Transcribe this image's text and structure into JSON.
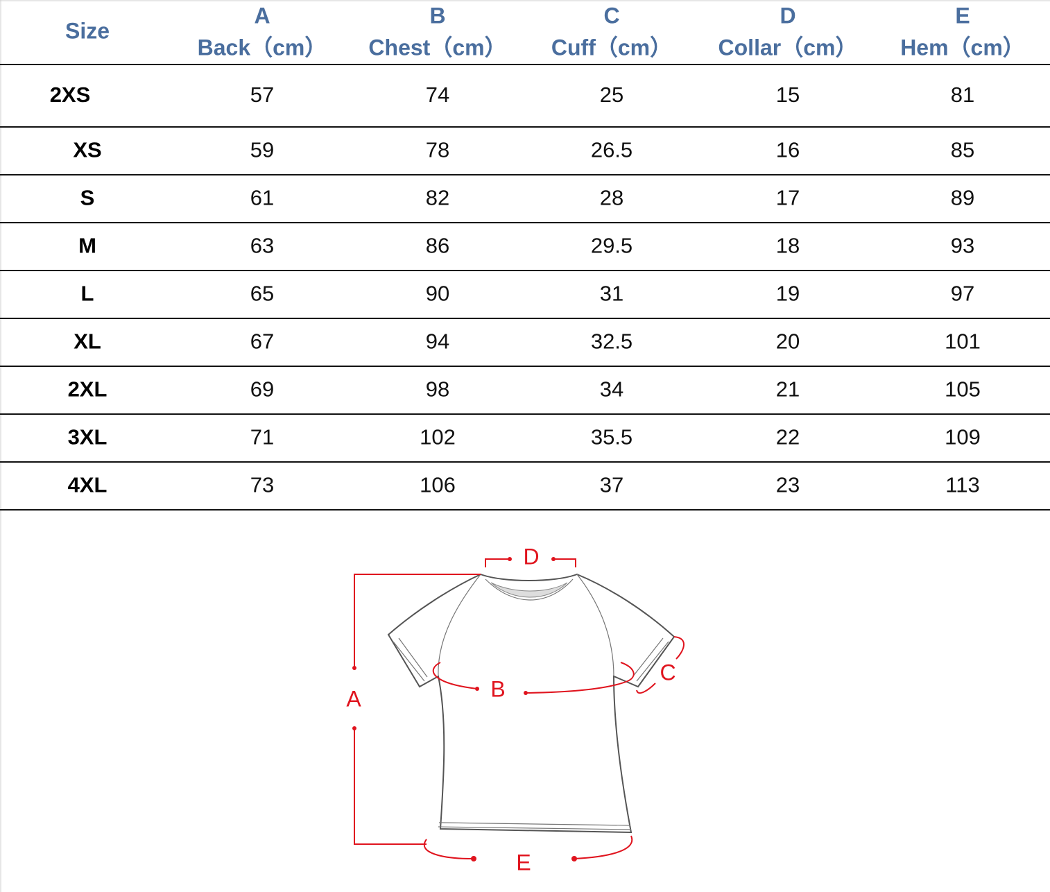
{
  "header": {
    "size_label": "Size",
    "columns": [
      {
        "letter": "A",
        "label": "Back（cm）"
      },
      {
        "letter": "B",
        "label": "Chest（cm）"
      },
      {
        "letter": "C",
        "label": "Cuff（cm）"
      },
      {
        "letter": "D",
        "label": "Collar（cm）"
      },
      {
        "letter": "E",
        "label": "Hem（cm）"
      }
    ]
  },
  "table": {
    "rows": [
      {
        "size": "2XS",
        "values": [
          57,
          74,
          25,
          15,
          81
        ]
      },
      {
        "size": "XS",
        "values": [
          59,
          78,
          26.5,
          16,
          85
        ]
      },
      {
        "size": "S",
        "values": [
          61,
          82,
          28,
          17,
          89
        ]
      },
      {
        "size": "M",
        "values": [
          63,
          86,
          29.5,
          18,
          93
        ]
      },
      {
        "size": "L",
        "values": [
          65,
          90,
          31,
          19,
          97
        ]
      },
      {
        "size": "XL",
        "values": [
          67,
          94,
          32.5,
          20,
          101
        ]
      },
      {
        "size": "2XL",
        "values": [
          69,
          98,
          34,
          21,
          105
        ]
      },
      {
        "size": "3XL",
        "values": [
          71,
          102,
          35.5,
          22,
          109
        ]
      },
      {
        "size": "4XL",
        "values": [
          73,
          106,
          37,
          23,
          113
        ]
      }
    ]
  },
  "diagram": {
    "labels": {
      "A": "A",
      "B": "B",
      "C": "C",
      "D": "D",
      "E": "E"
    }
  }
}
